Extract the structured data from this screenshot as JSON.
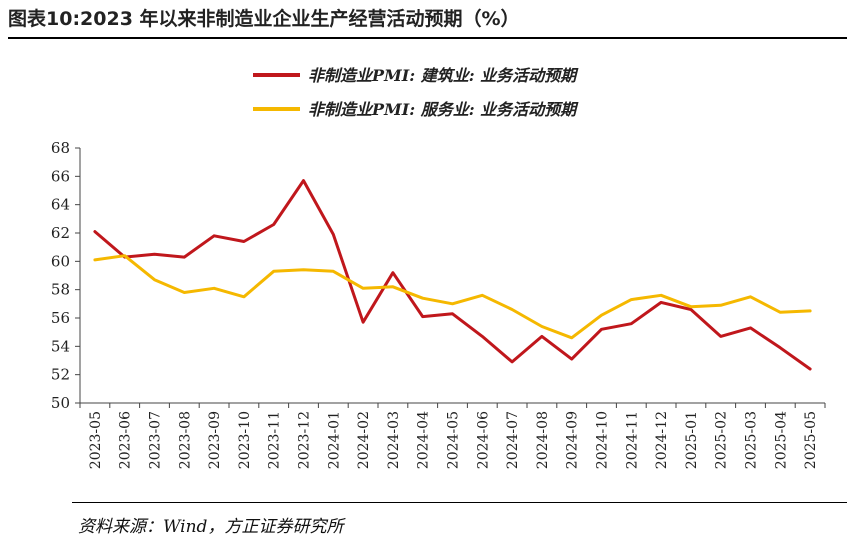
{
  "figure": {
    "title": "图表10:2023 年以来非制造业企业生产经营活动预期（%）",
    "source": "资料来源：Wind，方正证券研究所"
  },
  "chart_data": {
    "type": "line",
    "title": "",
    "xlabel": "",
    "ylabel": "",
    "ylim": [
      50,
      68
    ],
    "yticks": [
      50,
      52,
      54,
      56,
      58,
      60,
      62,
      64,
      66,
      68
    ],
    "grid": false,
    "legend_position": "top",
    "categories": [
      "2023-05",
      "2023-06",
      "2023-07",
      "2023-08",
      "2023-09",
      "2023-10",
      "2023-11",
      "2023-12",
      "2024-01",
      "2024-02",
      "2024-03",
      "2024-04",
      "2024-05",
      "2024-06",
      "2024-07",
      "2024-08",
      "2024-09",
      "2024-10",
      "2024-11",
      "2024-12",
      "2025-01",
      "2025-02",
      "2025-03",
      "2025-04",
      "2025-05"
    ],
    "series": [
      {
        "name": "非制造业PMI: 建筑业: 业务活动预期",
        "color": "#c0171c",
        "values": [
          62.1,
          60.3,
          60.5,
          60.3,
          61.8,
          61.4,
          62.6,
          65.7,
          61.9,
          55.7,
          59.2,
          56.1,
          56.3,
          54.7,
          52.9,
          54.7,
          53.1,
          55.2,
          55.6,
          57.1,
          56.6,
          54.7,
          55.3,
          53.9,
          52.4
        ]
      },
      {
        "name": "非制造业PMI: 服务业: 业务活动预期",
        "color": "#f5b800",
        "values": [
          60.1,
          60.4,
          58.7,
          57.8,
          58.1,
          57.5,
          59.3,
          59.4,
          59.3,
          58.1,
          58.2,
          57.4,
          57.0,
          57.6,
          56.6,
          55.4,
          54.6,
          56.2,
          57.3,
          57.6,
          56.8,
          56.9,
          57.5,
          56.4,
          56.5
        ]
      }
    ]
  }
}
